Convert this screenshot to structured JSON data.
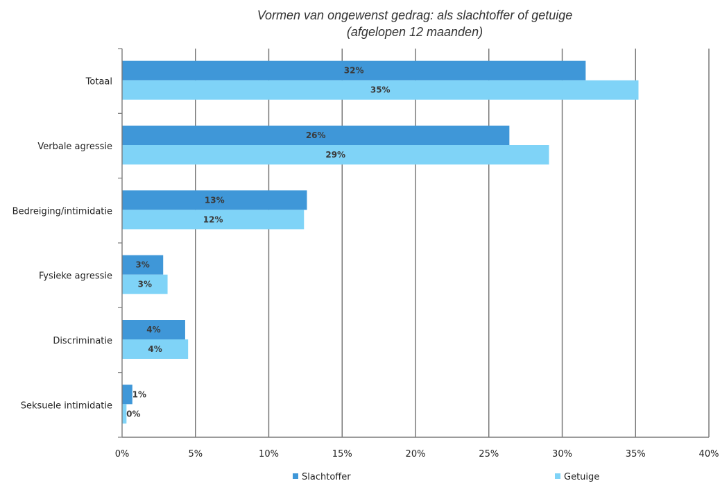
{
  "chart_data": {
    "type": "bar",
    "orientation": "horizontal",
    "title": "Vormen van ongewenst gedrag: als slachtoffer of getuige",
    "subtitle": "(afgelopen 12 maanden)",
    "categories": [
      "Totaal",
      "Verbale agressie",
      "Bedreiging/intimidatie",
      "Fysieke agressie",
      "Discriminatie",
      "Seksuele intimidatie"
    ],
    "series": [
      {
        "name": "Slachtoffer",
        "color": "#3f97d8",
        "values": [
          31.6,
          26.4,
          12.6,
          2.8,
          4.3,
          0.7
        ],
        "labels": [
          "32%",
          "26%",
          "13%",
          "3%",
          "4%",
          "1%"
        ]
      },
      {
        "name": "Getuige",
        "color": "#7fd3f7",
        "values": [
          35.2,
          29.1,
          12.4,
          3.1,
          4.5,
          0.3
        ],
        "labels": [
          "35%",
          "29%",
          "12%",
          "3%",
          "4%",
          "0%"
        ]
      }
    ],
    "xlim": [
      0,
      40
    ],
    "xticks": [
      0,
      5,
      10,
      15,
      20,
      25,
      30,
      35,
      40
    ],
    "xtick_labels": [
      "0%",
      "5%",
      "10%",
      "15%",
      "20%",
      "25%",
      "30%",
      "35%",
      "40%"
    ],
    "grid": true,
    "legend_position": "bottom"
  }
}
